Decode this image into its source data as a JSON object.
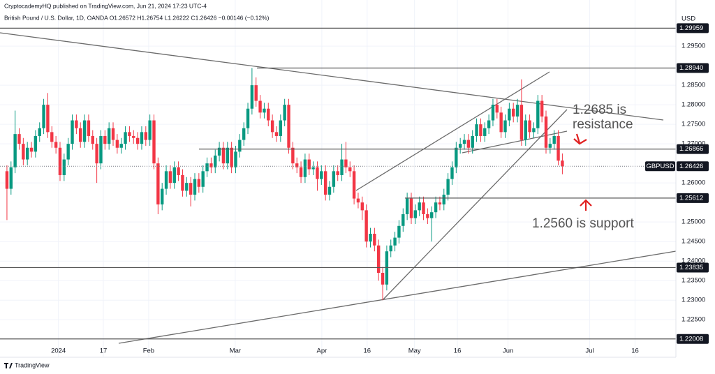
{
  "header": {
    "publisher": "CryptocademyHQ published on TradingView.com, Jun 21, 2024 17:23 UTC-4",
    "brand": "TradingView"
  },
  "chart_data": {
    "type": "candlestick",
    "title": "British Pound / U.S. Dollar, 1D, OANDA O1.26572 H1.26754 L1.26222 C1.26426 −0.00146 (−0.12%)",
    "currency": "USD",
    "up_color": "#089981",
    "down_color": "#f23645",
    "open": [
      1.263,
      1.2585,
      1.264,
      1.2725,
      1.27,
      1.266,
      1.269,
      1.268,
      1.272,
      1.274,
      1.28,
      1.273,
      1.2705,
      1.269,
      1.262,
      1.266,
      1.27,
      1.276,
      1.274,
      1.2705,
      1.276,
      1.272,
      1.27,
      1.265,
      1.272,
      1.27,
      1.274,
      1.271,
      1.269,
      1.27,
      1.273,
      1.272,
      1.2715,
      1.27,
      1.273,
      1.271,
      1.276,
      1.265,
      1.2545,
      1.2585,
      1.263,
      1.26,
      1.264,
      1.262,
      1.258,
      1.26,
      1.257,
      1.261,
      1.259,
      1.263,
      1.265,
      1.264,
      1.267,
      1.269,
      1.265,
      1.269,
      1.264,
      1.268,
      1.271,
      1.274,
      1.279,
      1.285,
      1.281,
      1.278,
      1.279,
      1.276,
      1.273,
      1.272,
      1.276,
      1.28,
      1.269,
      1.265,
      1.264,
      1.2615,
      1.266,
      1.2635,
      1.264,
      1.261,
      1.263,
      1.257,
      1.259,
      1.263,
      1.262,
      1.266,
      1.264,
      1.263,
      1.256,
      1.255,
      1.253,
      1.245,
      1.247,
      1.244,
      1.237,
      1.234,
      1.2425,
      1.244,
      1.246,
      1.249,
      1.252,
      1.256,
      1.251,
      1.253,
      1.255,
      1.252,
      1.251,
      1.2525,
      1.255,
      1.2545,
      1.257,
      1.261,
      1.264,
      1.269,
      1.27,
      1.271,
      1.269,
      1.272,
      1.275,
      1.272,
      1.274,
      1.276,
      1.28,
      1.278,
      1.273,
      1.276,
      1.279,
      1.277,
      1.28,
      1.271,
      1.276,
      1.273,
      1.274,
      1.281,
      1.277,
      1.269,
      1.27,
      1.272,
      1.26572
    ],
    "high": [
      1.2645,
      1.2655,
      1.2785,
      1.274,
      1.2715,
      1.2705,
      1.2705,
      1.2735,
      1.2755,
      1.2815,
      1.283,
      1.2745,
      1.272,
      1.2705,
      1.2675,
      1.2715,
      1.2775,
      1.2775,
      1.2755,
      1.2775,
      1.2775,
      1.2735,
      1.2715,
      1.2735,
      1.2735,
      1.2755,
      1.2755,
      1.2725,
      1.2715,
      1.2745,
      1.2745,
      1.2735,
      1.273,
      1.2745,
      1.2745,
      1.2775,
      1.2775,
      1.2665,
      1.26,
      1.2645,
      1.2645,
      1.2655,
      1.2655,
      1.2635,
      1.2615,
      1.2615,
      1.2625,
      1.2625,
      1.2645,
      1.2665,
      1.2665,
      1.2685,
      1.2705,
      1.2705,
      1.2705,
      1.2705,
      1.2695,
      1.2725,
      1.2755,
      1.2805,
      1.2894,
      1.287,
      1.2825,
      1.2805,
      1.2805,
      1.2775,
      1.2745,
      1.2775,
      1.2815,
      1.2815,
      1.2705,
      1.2665,
      1.2655,
      1.2675,
      1.2675,
      1.2655,
      1.2655,
      1.2645,
      1.2645,
      1.2605,
      1.2645,
      1.2645,
      1.27,
      1.2705,
      1.2655,
      1.2645,
      1.2575,
      1.2565,
      1.2545,
      1.2485,
      1.2485,
      1.2455,
      1.2385,
      1.244,
      1.2455,
      1.2475,
      1.2505,
      1.2535,
      1.2575,
      1.2575,
      1.2545,
      1.2565,
      1.2565,
      1.2535,
      1.254,
      1.2565,
      1.2565,
      1.2585,
      1.2625,
      1.2655,
      1.2705,
      1.2715,
      1.2725,
      1.2725,
      1.2735,
      1.2765,
      1.2765,
      1.2755,
      1.2775,
      1.2815,
      1.2815,
      1.2795,
      1.2775,
      1.2805,
      1.2805,
      1.2815,
      1.2865,
      1.2775,
      1.2775,
      1.2755,
      1.2825,
      1.2825,
      1.2785,
      1.2715,
      1.2735,
      1.2735,
      1.26754
    ],
    "low": [
      1.2505,
      1.257,
      1.2625,
      1.2685,
      1.2645,
      1.2645,
      1.2665,
      1.2665,
      1.2705,
      1.2725,
      1.2715,
      1.269,
      1.2675,
      1.2605,
      1.2605,
      1.2645,
      1.2685,
      1.2725,
      1.269,
      1.269,
      1.2705,
      1.2685,
      1.26,
      1.2635,
      1.2685,
      1.2685,
      1.2695,
      1.2675,
      1.2675,
      1.2685,
      1.2705,
      1.27,
      1.2685,
      1.2685,
      1.2695,
      1.2695,
      1.2635,
      1.252,
      1.253,
      1.257,
      1.2585,
      1.2585,
      1.2605,
      1.2565,
      1.2565,
      1.254,
      1.2555,
      1.2575,
      1.2575,
      1.2615,
      1.2625,
      1.2625,
      1.2655,
      1.2635,
      1.2635,
      1.2625,
      1.2625,
      1.2665,
      1.2695,
      1.2725,
      1.2775,
      1.2795,
      1.2765,
      1.2765,
      1.2745,
      1.2715,
      1.2705,
      1.2705,
      1.2745,
      1.2675,
      1.2635,
      1.2625,
      1.26,
      1.26,
      1.262,
      1.262,
      1.258,
      1.2595,
      1.2555,
      1.2555,
      1.2575,
      1.2605,
      1.2605,
      1.2625,
      1.2615,
      1.2545,
      1.2535,
      1.2505,
      1.2435,
      1.2435,
      1.2425,
      1.235,
      1.23,
      1.2325,
      1.241,
      1.2425,
      1.2445,
      1.2475,
      1.2505,
      1.2495,
      1.2495,
      1.2515,
      1.2505,
      1.2495,
      1.245,
      1.251,
      1.253,
      1.253,
      1.2555,
      1.2595,
      1.2625,
      1.2675,
      1.2685,
      1.2675,
      1.2675,
      1.2705,
      1.2705,
      1.2705,
      1.2725,
      1.2745,
      1.2765,
      1.2715,
      1.2715,
      1.2745,
      1.2755,
      1.2755,
      1.2695,
      1.2695,
      1.2715,
      1.2715,
      1.2725,
      1.2755,
      1.2675,
      1.2675,
      1.2685,
      1.2645,
      1.26222
    ],
    "close": [
      1.2585,
      1.264,
      1.2725,
      1.27,
      1.266,
      1.269,
      1.268,
      1.272,
      1.274,
      1.28,
      1.273,
      1.2705,
      1.269,
      1.262,
      1.266,
      1.27,
      1.276,
      1.274,
      1.2705,
      1.276,
      1.272,
      1.27,
      1.265,
      1.272,
      1.27,
      1.274,
      1.271,
      1.269,
      1.27,
      1.273,
      1.272,
      1.2715,
      1.27,
      1.273,
      1.271,
      1.276,
      1.265,
      1.2545,
      1.2585,
      1.263,
      1.26,
      1.264,
      1.262,
      1.258,
      1.26,
      1.257,
      1.261,
      1.259,
      1.263,
      1.265,
      1.264,
      1.267,
      1.269,
      1.265,
      1.269,
      1.264,
      1.268,
      1.271,
      1.274,
      1.279,
      1.285,
      1.281,
      1.278,
      1.279,
      1.276,
      1.273,
      1.272,
      1.276,
      1.28,
      1.269,
      1.265,
      1.264,
      1.2615,
      1.266,
      1.2635,
      1.264,
      1.261,
      1.263,
      1.257,
      1.259,
      1.263,
      1.262,
      1.266,
      1.264,
      1.263,
      1.256,
      1.255,
      1.253,
      1.245,
      1.247,
      1.244,
      1.237,
      1.234,
      1.2425,
      1.244,
      1.246,
      1.249,
      1.252,
      1.256,
      1.251,
      1.253,
      1.255,
      1.252,
      1.251,
      1.2525,
      1.255,
      1.2545,
      1.257,
      1.261,
      1.264,
      1.269,
      1.27,
      1.271,
      1.269,
      1.272,
      1.275,
      1.272,
      1.274,
      1.276,
      1.28,
      1.278,
      1.273,
      1.276,
      1.279,
      1.277,
      1.28,
      1.271,
      1.276,
      1.273,
      1.274,
      1.281,
      1.277,
      1.269,
      1.27,
      1.272,
      1.2657,
      1.26426
    ],
    "xlim": [
      -1.7,
      163.8
    ],
    "xticks": [
      {
        "value": 12.6,
        "label": "2024"
      },
      {
        "value": 23.6,
        "label": "17"
      },
      {
        "value": 34.7,
        "label": "Feb"
      },
      {
        "value": 55.9,
        "label": "Mar"
      },
      {
        "value": 77.1,
        "label": "Apr"
      },
      {
        "value": 88.2,
        "label": "16"
      },
      {
        "value": 99.8,
        "label": "May"
      },
      {
        "value": 110.3,
        "label": "16"
      },
      {
        "value": 122.7,
        "label": "Jun"
      },
      {
        "value": 142.7,
        "label": "Jul"
      },
      {
        "value": 153.8,
        "label": "16"
      }
    ],
    "ylim": [
      1.2154,
      1.3068
    ],
    "yticks": [
      {
        "value": 1.295,
        "label": "1.29500"
      },
      {
        "value": 1.285,
        "label": "1.28500"
      },
      {
        "value": 1.28,
        "label": "1.28000"
      },
      {
        "value": 1.275,
        "label": "1.27500"
      },
      {
        "value": 1.27,
        "label": "1.27000"
      },
      {
        "value": 1.26,
        "label": "1.26000"
      },
      {
        "value": 1.25,
        "label": "1.25000"
      },
      {
        "value": 1.245,
        "label": "1.24500"
      },
      {
        "value": 1.24,
        "label": "1.24000"
      },
      {
        "value": 1.235,
        "label": "1.23500"
      },
      {
        "value": 1.23,
        "label": "1.23000"
      },
      {
        "value": 1.225,
        "label": "1.22500"
      }
    ],
    "levels": [
      1.29959,
      {
        "value": 1.2894,
        "label": "1.28940"
      },
      1.26866,
      1.25612,
      1.23835,
      1.22008
    ],
    "last_price": {
      "name": "GBPUSD",
      "value": 1.26426
    },
    "annotations": [
      "1.2685 is",
      "resistance",
      "1.2560 is support"
    ],
    "grid": true
  }
}
